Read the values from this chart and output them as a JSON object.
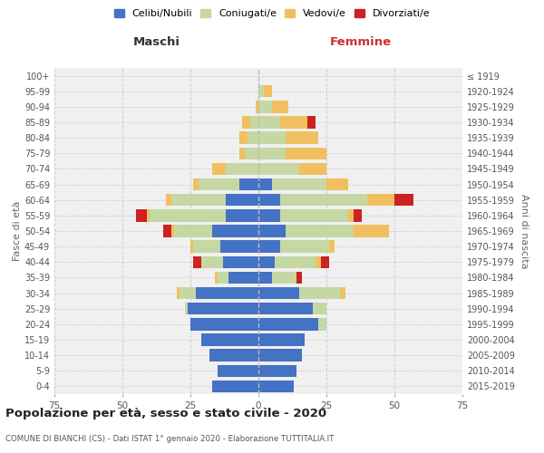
{
  "age_groups": [
    "0-4",
    "5-9",
    "10-14",
    "15-19",
    "20-24",
    "25-29",
    "30-34",
    "35-39",
    "40-44",
    "45-49",
    "50-54",
    "55-59",
    "60-64",
    "65-69",
    "70-74",
    "75-79",
    "80-84",
    "85-89",
    "90-94",
    "95-99",
    "100+"
  ],
  "birth_years": [
    "2015-2019",
    "2010-2014",
    "2005-2009",
    "2000-2004",
    "1995-1999",
    "1990-1994",
    "1985-1989",
    "1980-1984",
    "1975-1979",
    "1970-1974",
    "1965-1969",
    "1960-1964",
    "1955-1959",
    "1950-1954",
    "1945-1949",
    "1940-1944",
    "1935-1939",
    "1930-1934",
    "1925-1929",
    "1920-1924",
    "≤ 1919"
  ],
  "male": {
    "celibi": [
      17,
      15,
      18,
      21,
      25,
      26,
      23,
      11,
      13,
      14,
      17,
      12,
      12,
      7,
      0,
      0,
      0,
      0,
      0,
      0,
      0
    ],
    "coniugati": [
      0,
      0,
      0,
      0,
      0,
      1,
      6,
      4,
      8,
      10,
      14,
      28,
      20,
      15,
      12,
      5,
      4,
      3,
      0,
      0,
      0
    ],
    "vedovi": [
      0,
      0,
      0,
      0,
      0,
      0,
      1,
      1,
      0,
      1,
      1,
      1,
      2,
      2,
      5,
      2,
      3,
      3,
      1,
      0,
      0
    ],
    "divorziati": [
      0,
      0,
      0,
      0,
      0,
      0,
      0,
      0,
      3,
      0,
      3,
      4,
      0,
      0,
      0,
      0,
      0,
      0,
      0,
      0,
      0
    ]
  },
  "female": {
    "nubili": [
      13,
      14,
      16,
      17,
      22,
      20,
      15,
      5,
      6,
      8,
      10,
      8,
      8,
      5,
      0,
      0,
      0,
      0,
      0,
      0,
      0
    ],
    "coniugate": [
      0,
      0,
      0,
      0,
      3,
      5,
      15,
      9,
      15,
      18,
      25,
      25,
      32,
      20,
      15,
      10,
      10,
      8,
      5,
      2,
      0
    ],
    "vedove": [
      0,
      0,
      0,
      0,
      0,
      0,
      2,
      0,
      2,
      2,
      13,
      2,
      10,
      8,
      10,
      15,
      12,
      10,
      6,
      3,
      0
    ],
    "divorziate": [
      0,
      0,
      0,
      0,
      0,
      0,
      0,
      2,
      3,
      0,
      0,
      3,
      7,
      0,
      0,
      0,
      0,
      3,
      0,
      0,
      0
    ]
  },
  "colors": {
    "celibi": "#4472C4",
    "coniugati": "#c5d8a4",
    "vedovi": "#f0c060",
    "divorziati": "#cc2222"
  },
  "xlim": 75,
  "title": "Popolazione per età, sesso e stato civile - 2020",
  "subtitle": "COMUNE DI BIANCHI (CS) - Dati ISTAT 1° gennaio 2020 - Elaborazione TUTTITALIA.IT",
  "ylabel_left": "Fasce di età",
  "ylabel_right": "Anni di nascita",
  "xlabel_left": "Maschi",
  "xlabel_right": "Femmine",
  "legend_labels": [
    "Celibi/Nubili",
    "Coniugati/e",
    "Vedovi/e",
    "Divorziati/e"
  ],
  "bg_color": "#f0f0f0"
}
